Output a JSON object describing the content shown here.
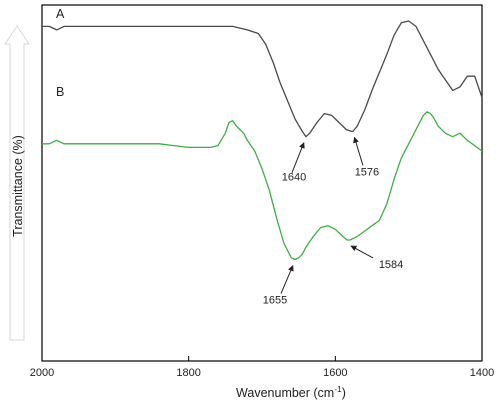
{
  "chart_data": {
    "type": "line",
    "title": "",
    "xlabel_base": "Wavenumber (cm",
    "xlabel_sup": "-1",
    "xlabel_close": ")",
    "ylabel": "Transmittance (%)",
    "xlim": [
      2000,
      1400
    ],
    "x_reversed": true,
    "y_ticks_shown": false,
    "grid": false,
    "x_ticks": [
      2000,
      1800,
      1600,
      1400
    ],
    "x_tick_labels": [
      "2000",
      "1800",
      "1600",
      "1400"
    ],
    "series": [
      {
        "name": "A",
        "color": "#4a4a4a",
        "x": [
          2000,
          1990,
          1980,
          1970,
          1960,
          1950,
          1940,
          1920,
          1900,
          1880,
          1860,
          1840,
          1820,
          1800,
          1780,
          1760,
          1740,
          1720,
          1705,
          1695,
          1685,
          1675,
          1665,
          1655,
          1645,
          1640,
          1635,
          1625,
          1615,
          1605,
          1595,
          1585,
          1578,
          1576,
          1570,
          1560,
          1550,
          1540,
          1530,
          1520,
          1510,
          1500,
          1490,
          1480,
          1470,
          1460,
          1450,
          1440,
          1430,
          1420,
          1410,
          1400
        ],
        "y": [
          94,
          94,
          93,
          94,
          94,
          94,
          94,
          94,
          94,
          94,
          94,
          94,
          94,
          94,
          94,
          94,
          94,
          93,
          92,
          89,
          84,
          78,
          73,
          68,
          64.5,
          63,
          64,
          67,
          69.5,
          69,
          67,
          65,
          64.5,
          64.5,
          66,
          70.5,
          76,
          81,
          86,
          91.5,
          95,
          95.5,
          94,
          90,
          86,
          82,
          79,
          76,
          77,
          80,
          80,
          74
        ]
      },
      {
        "name": "B",
        "color": "#3cb043",
        "x": [
          2000,
          1990,
          1980,
          1970,
          1960,
          1950,
          1940,
          1920,
          1900,
          1880,
          1860,
          1840,
          1820,
          1800,
          1780,
          1770,
          1760,
          1750,
          1745,
          1740,
          1735,
          1730,
          1725,
          1720,
          1710,
          1700,
          1690,
          1680,
          1670,
          1660,
          1655,
          1650,
          1645,
          1640,
          1630,
          1620,
          1610,
          1600,
          1590,
          1584,
          1580,
          1570,
          1560,
          1550,
          1540,
          1530,
          1520,
          1510,
          1500,
          1490,
          1480,
          1475,
          1470,
          1465,
          1460,
          1450,
          1440,
          1430,
          1420,
          1410,
          1400
        ],
        "y": [
          61,
          61,
          62,
          61,
          61,
          61,
          61,
          61,
          61,
          61,
          61,
          61,
          60.5,
          60,
          60,
          60,
          60.5,
          64,
          67,
          67.5,
          66,
          65,
          64,
          62,
          59,
          54,
          48,
          40,
          33,
          29,
          28.5,
          29,
          30,
          32,
          35,
          37.5,
          38,
          37,
          35,
          34,
          34,
          35,
          36.5,
          38,
          39.5,
          44,
          51,
          57,
          61,
          65,
          69,
          70,
          69.5,
          68,
          66,
          64,
          63,
          64,
          62,
          60.5,
          59
        ]
      }
    ],
    "curve_labels": [
      "A",
      "B"
    ],
    "annotations": [
      {
        "label": "1640",
        "series": "A",
        "x": 1640
      },
      {
        "label": "1576",
        "series": "A",
        "x": 1576
      },
      {
        "label": "1655",
        "series": "B",
        "x": 1655
      },
      {
        "label": "1584",
        "series": "B",
        "x": 1584
      }
    ]
  }
}
